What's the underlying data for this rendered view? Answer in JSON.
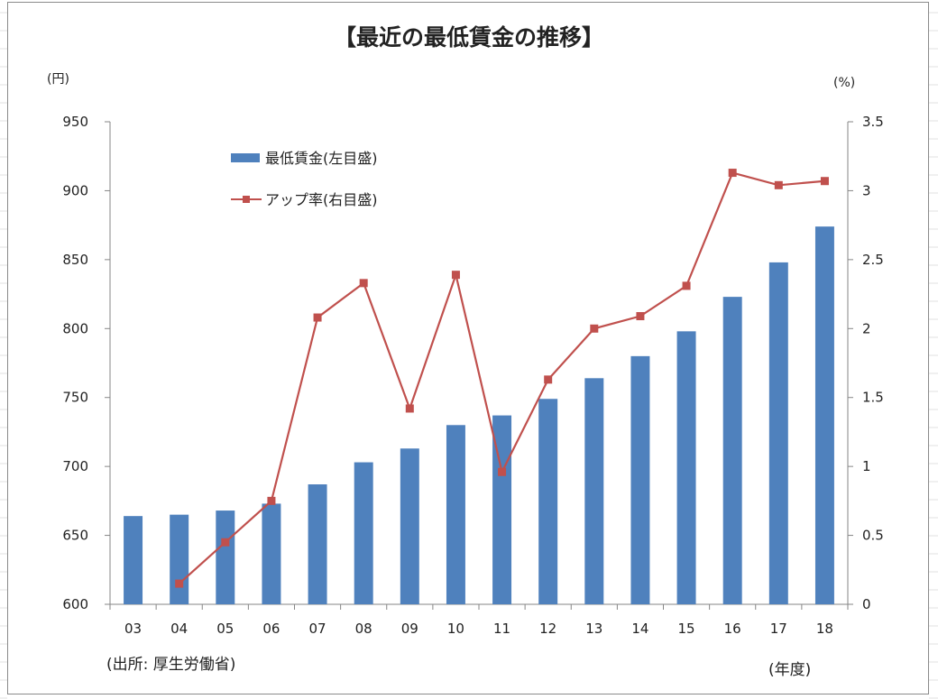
{
  "chart_data": {
    "type": "bar",
    "title": "【最近の最低賃金の推移】",
    "y_left_unit": "(円)",
    "y_right_unit": "(%)",
    "x_unit": "(年度)",
    "source_note": "(出所: 厚生労働省)",
    "categories": [
      "03",
      "04",
      "05",
      "06",
      "07",
      "08",
      "09",
      "10",
      "11",
      "12",
      "13",
      "14",
      "15",
      "16",
      "17",
      "18"
    ],
    "y_left": {
      "min": 600,
      "max": 950,
      "ticks": [
        "600",
        "650",
        "700",
        "750",
        "800",
        "850",
        "900",
        "950"
      ]
    },
    "y_right": {
      "min": 0,
      "max": 3.5,
      "ticks": [
        "0",
        "0.5",
        "1",
        "1.5",
        "2",
        "2.5",
        "3",
        "3.5"
      ]
    },
    "series": [
      {
        "name": "最低賃金(左目盛)",
        "type": "bar",
        "axis": "left",
        "color": "#4f81bd",
        "values": [
          664,
          665,
          668,
          673,
          687,
          703,
          713,
          730,
          737,
          749,
          764,
          780,
          798,
          823,
          848,
          874
        ]
      },
      {
        "name": "アップ率(右目盛)",
        "type": "line",
        "axis": "right",
        "color": "#c0504d",
        "marker": "square",
        "values": [
          null,
          0.15,
          0.45,
          0.75,
          2.08,
          2.33,
          1.42,
          2.39,
          0.96,
          1.63,
          2.0,
          2.09,
          2.31,
          3.13,
          3.04,
          3.07
        ]
      }
    ],
    "grid": false,
    "legend_position": "top-left"
  }
}
